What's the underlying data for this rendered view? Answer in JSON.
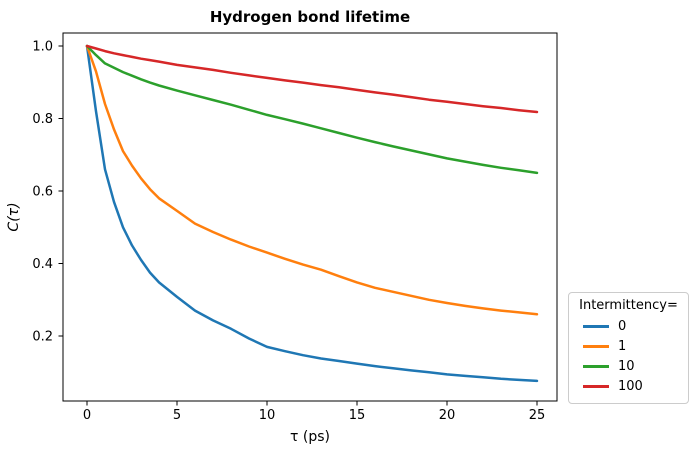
{
  "title": "Hydrogen bond lifetime",
  "legend": {
    "title": "Intermittency=",
    "position": "outside-right",
    "entries": [
      "0",
      "1",
      "10",
      "100"
    ]
  },
  "colors": {
    "series_0": "#1f77b4",
    "series_1": "#ff7f0e",
    "series_10": "#2ca02c",
    "series_100": "#d62728",
    "spine": "#000000",
    "legend_border": "#cccccc"
  },
  "chart_data": {
    "type": "line",
    "title": "Hydrogen bond lifetime",
    "xlabel": "τ (ps)",
    "ylabel": "C(τ)",
    "xlim": [
      -1.25,
      26.25
    ],
    "ylim": [
      0.03,
      1.05
    ],
    "grid": false,
    "legend_position": "outside-right",
    "legend_title": "Intermittency=",
    "xticks": [
      0,
      5,
      10,
      15,
      20,
      25
    ],
    "xtick_labels": [
      "0",
      "5",
      "10",
      "15",
      "20",
      "25"
    ],
    "yticks": [
      0.2,
      0.4,
      0.6,
      0.8,
      1.0
    ],
    "ytick_labels": [
      "0.2",
      "0.4",
      "0.6",
      "0.8",
      "1.0"
    ],
    "x": [
      0,
      0.5,
      1,
      1.5,
      2,
      2.5,
      3,
      3.5,
      4,
      5,
      6,
      7,
      8,
      9,
      10,
      11,
      12,
      13,
      14,
      15,
      16,
      17,
      18,
      19,
      20,
      21,
      22,
      23,
      24,
      25
    ],
    "series": [
      {
        "name": "0",
        "color": "#1f77b4",
        "values": [
          1.0,
          0.82,
          0.66,
          0.57,
          0.5,
          0.45,
          0.41,
          0.375,
          0.348,
          0.308,
          0.27,
          0.243,
          0.22,
          0.193,
          0.17,
          0.158,
          0.147,
          0.138,
          0.131,
          0.124,
          0.117,
          0.111,
          0.105,
          0.1,
          0.094,
          0.09,
          0.086,
          0.082,
          0.079,
          0.076
        ]
      },
      {
        "name": "1",
        "color": "#ff7f0e",
        "values": [
          1.0,
          0.93,
          0.84,
          0.77,
          0.71,
          0.67,
          0.635,
          0.605,
          0.58,
          0.545,
          0.51,
          0.487,
          0.466,
          0.447,
          0.43,
          0.413,
          0.397,
          0.383,
          0.365,
          0.348,
          0.333,
          0.322,
          0.311,
          0.3,
          0.291,
          0.283,
          0.276,
          0.27,
          0.265,
          0.26
        ]
      },
      {
        "name": "10",
        "color": "#2ca02c",
        "values": [
          1.0,
          0.975,
          0.952,
          0.94,
          0.928,
          0.918,
          0.908,
          0.899,
          0.891,
          0.877,
          0.864,
          0.851,
          0.838,
          0.824,
          0.81,
          0.798,
          0.786,
          0.773,
          0.76,
          0.747,
          0.735,
          0.723,
          0.712,
          0.701,
          0.69,
          0.681,
          0.672,
          0.664,
          0.657,
          0.65
        ]
      },
      {
        "name": "100",
        "color": "#d62728",
        "values": [
          1.0,
          0.993,
          0.986,
          0.98,
          0.975,
          0.97,
          0.965,
          0.961,
          0.957,
          0.948,
          0.941,
          0.934,
          0.926,
          0.919,
          0.912,
          0.905,
          0.899,
          0.892,
          0.886,
          0.879,
          0.872,
          0.866,
          0.859,
          0.852,
          0.846,
          0.84,
          0.834,
          0.829,
          0.823,
          0.818
        ]
      }
    ]
  }
}
